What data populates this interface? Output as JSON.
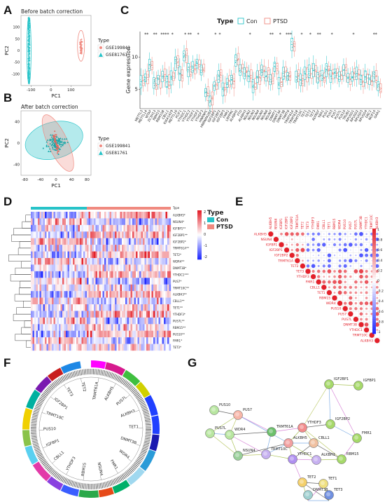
{
  "panels": {
    "A": {
      "letter": "A",
      "title": "Before batch correction"
    },
    "B": {
      "letter": "B",
      "title": "After batch correction"
    },
    "C": {
      "letter": "C"
    },
    "D": {
      "letter": "D"
    },
    "E": {
      "letter": "E"
    },
    "F": {
      "letter": "F"
    },
    "G": {
      "letter": "G"
    }
  },
  "colors": {
    "con": "#27c3c8",
    "ptsd": "#f08a80",
    "red": "#e3202a",
    "blue": "#1f2aa6",
    "white": "#ffffff"
  },
  "genes_c": [
    "METTL3",
    "METTL14",
    "WTAP",
    "ZC3H13",
    "RBM15",
    "RBM15B",
    "CBLL1",
    "KIAA1429",
    "METTL16",
    "PCIF1",
    "YTHDC1",
    "YTHDC2",
    "YTHDF1",
    "YTHDF2",
    "YTHDF3",
    "HNRNPC",
    "HNRNPA2B1",
    "IGF2BP1",
    "IGF2BP2",
    "IGF2BP3",
    "FMR1",
    "LRPPRC",
    "ALKBH5",
    "FTO",
    "ALKBH3",
    "NSUN2",
    "NSUN3",
    "NSUN4",
    "NSUN5",
    "NSUN6",
    "NSUN7",
    "DNMT1",
    "DNMT3A",
    "DNMT3B",
    "TRMT6",
    "TRMT61A",
    "TRMT61B",
    "TRMT10C",
    "TET1",
    "TET2",
    "TET3",
    "ALYREF",
    "YBX1",
    "PUS1",
    "PUS3",
    "PUS7",
    "PUS7L",
    "PUS10",
    "TRUB1",
    "RPUSD1",
    "RPUSD2",
    "RPUSD3",
    "RPUSD4",
    "DKC1",
    "NOP10",
    "GAR1"
  ],
  "genes_e": [
    "ALKBH5",
    "NSUN4",
    "IGFBP1",
    "IGF2BP1",
    "IGF2BP2",
    "TRMT61A",
    "TET2",
    "TET3",
    "YTHDF3",
    "FMR1",
    "CBLL1",
    "TET1",
    "RBM15",
    "WDR4",
    "PUS10",
    "PUS7",
    "PUS7L",
    "DNMT3B",
    "YTHDC1",
    "TRMT10C",
    "ALKBH3"
  ],
  "genes_d": [
    "ALKBH5*",
    "NSUN4*",
    "IGFBP1**",
    "IGF2BP1**",
    "IGF2BP2*",
    "TRMT61A**",
    "TET2*",
    "WDR4**",
    "DNMT3B*",
    "YTHDC1***",
    "PUS7*",
    "TRMT10C**",
    "ALKBH3**",
    "CBLL1**",
    "TET1**",
    "YTHDF3*",
    "PUS7L**",
    "RBM15**",
    "PUS10**",
    "FMR1*",
    "TET3*"
  ],
  "chart_data": [
    {
      "panel": "A",
      "type": "scatter",
      "title": "Before batch correction",
      "xlabel": "PC1",
      "ylabel": "PC2",
      "xticks": [
        "-100",
        "0",
        "100"
      ],
      "yticks": [
        "-100",
        "-50",
        "0",
        "50",
        "100"
      ],
      "legend_title": "Type",
      "legend": [
        "GSE199841",
        "GSE81761"
      ],
      "series": [
        {
          "name": "GSE199841",
          "x_center": 150,
          "y_center": 20,
          "x_spread": 8,
          "y_spread": 35
        },
        {
          "name": "GSE81761",
          "x_center": -110,
          "y_center": 0,
          "x_spread": 4,
          "y_spread": 110
        }
      ]
    },
    {
      "panel": "B",
      "type": "scatter",
      "title": "After batch correction",
      "xlabel": "PC1",
      "ylabel": "PC2",
      "xticks": [
        "-80",
        "-40",
        "0",
        "40",
        "80"
      ],
      "yticks": [
        "-40",
        "0",
        "40"
      ],
      "legend_title": "Type",
      "legend": [
        "GSE199841",
        "GSE81761"
      ]
    },
    {
      "panel": "C",
      "type": "box",
      "legend_title": "Type",
      "legend": [
        "Con",
        "PTSD"
      ],
      "ylabel": "Gene expression",
      "yticks": [
        "5",
        "10"
      ],
      "ylim": [
        2,
        14
      ],
      "medians_con": [
        6.2,
        6.8,
        8.8,
        6.0,
        6.5,
        7.0,
        6.2,
        6.8,
        9.0,
        7.5,
        10.2,
        8.0,
        8.5,
        9.0,
        8.0,
        4.5,
        3.2,
        5.5,
        7.0,
        5.0,
        6.0,
        6.5,
        9.5,
        8.0,
        7.5,
        7.0,
        5.5,
        7.0,
        8.0,
        7.0,
        6.5,
        8.5,
        6.0,
        7.5,
        7.0,
        12.0,
        7.0,
        6.5,
        7.5,
        7.8,
        8.0,
        6.8,
        7.2,
        8.0,
        7.0,
        7.5,
        7.0,
        8.0,
        6.8,
        7.0,
        7.5,
        6.5,
        7.0,
        6.5,
        7.0,
        5.5
      ],
      "significance": [
        "**",
        "**",
        "***",
        "*",
        "*",
        "*",
        "**",
        "*",
        "*",
        "*",
        "*",
        "**",
        "*",
        "***",
        "*",
        "*",
        "**",
        "*",
        "*",
        "**"
      ]
    },
    {
      "panel": "D",
      "type": "heatmap",
      "legend_title": "Type",
      "legend": [
        "Con",
        "PTSD"
      ],
      "scale": [
        "2",
        "1",
        "0",
        "-1",
        "-2"
      ]
    },
    {
      "panel": "E",
      "type": "heatmap",
      "scale": [
        "1",
        "0.8",
        "0.6",
        "0.4",
        "0.2",
        "0",
        "-0.2",
        "-0.4",
        "-0.6",
        "-0.8",
        "-1"
      ]
    },
    {
      "panel": "F",
      "type": "circos",
      "labels": [
        "TRMT61A",
        "ALKBH5",
        "PUS7L",
        "ALKBH3",
        "TET1",
        "DNMT3B",
        "WDR4",
        "FMR1",
        "NSUN4",
        "RBM15",
        "YTHDF3",
        "CBLL1",
        "IGFBP1",
        "PUS10",
        "TRMT10C",
        "IGF2BP1",
        "TET3",
        "TET2"
      ]
    },
    {
      "panel": "G",
      "type": "network",
      "nodes": [
        "IGFBP1",
        "IGF2BP1",
        "PUS10",
        "PUS7",
        "PUS7L",
        "WDR4",
        "TRMT61A",
        "YTHDF3",
        "IGF2BP2",
        "FMR1",
        "RBM15",
        "ALKBH3",
        "ALKBH5",
        "CBLL1",
        "NSUN4",
        "TRMT10C",
        "YTHDC1",
        "TET2",
        "TET1",
        "DNMT3B",
        "TET3"
      ]
    }
  ]
}
